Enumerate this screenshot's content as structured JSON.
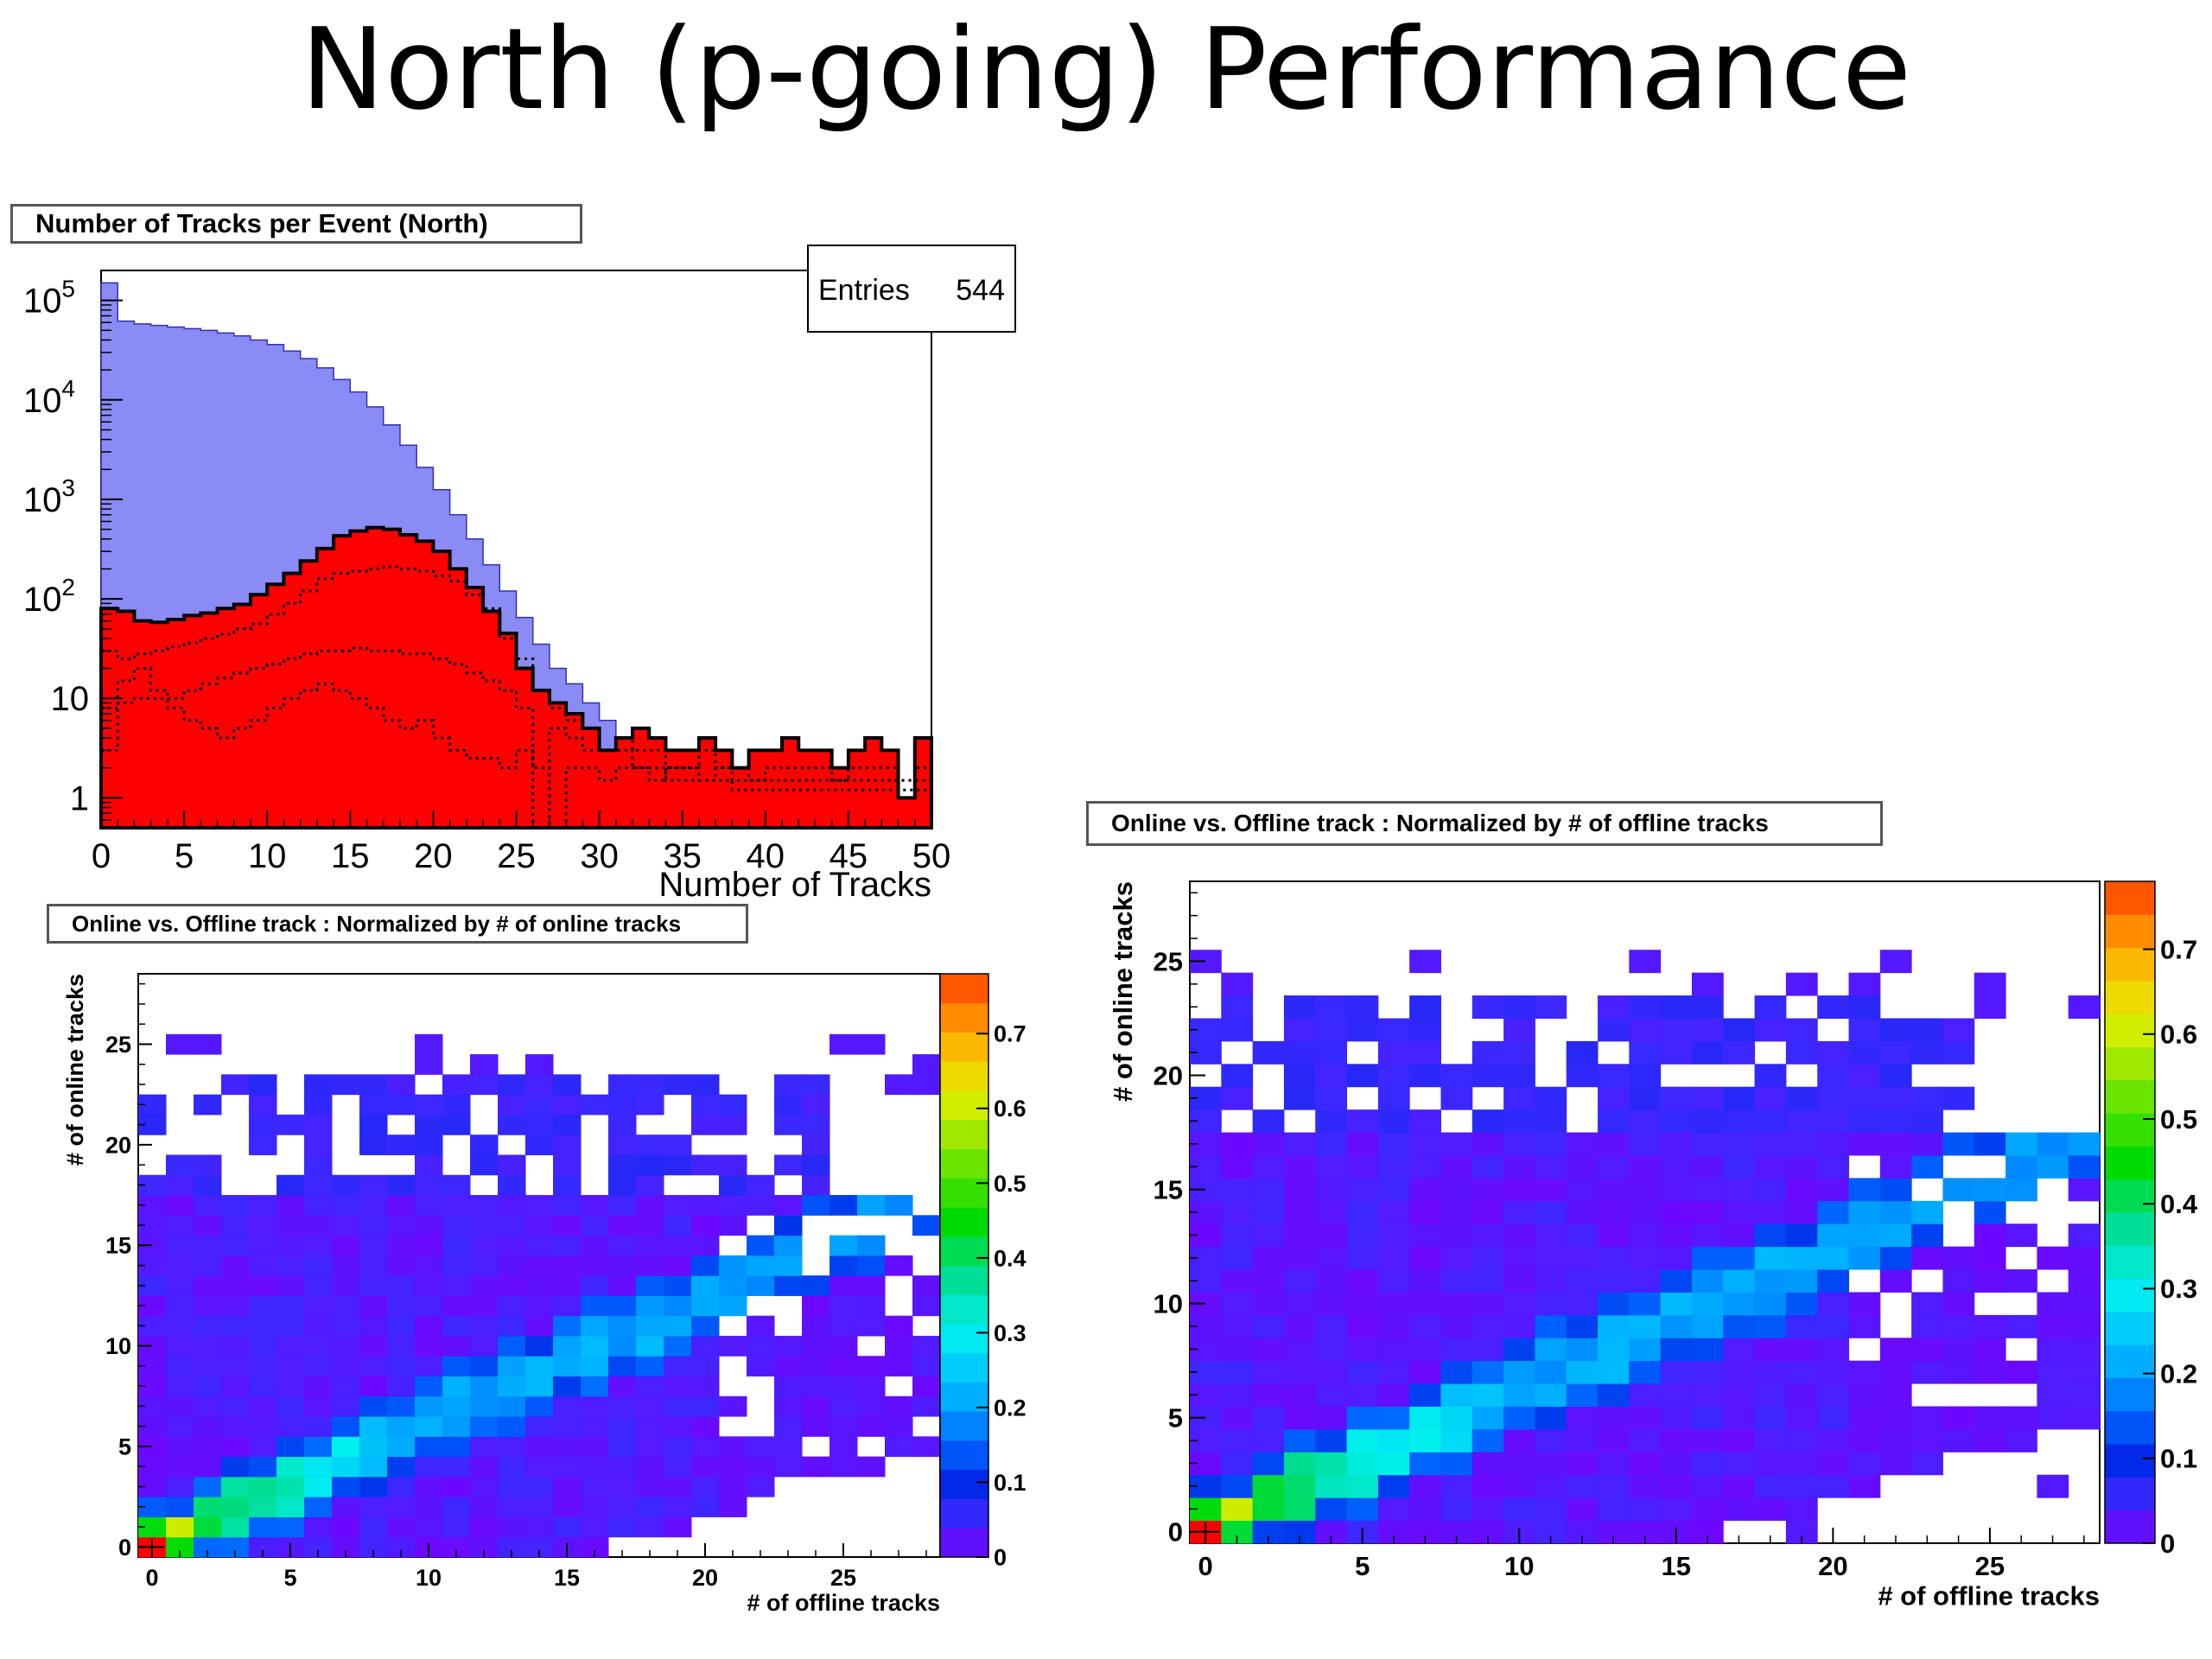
{
  "slide": {
    "title": "North (p-going) Performance"
  },
  "chart_data": [
    {
      "type": "histogram",
      "title": "Number of Tracks per Event (North)",
      "xlabel": "Number of Tracks",
      "ylabel": "",
      "xlim": [
        0,
        50
      ],
      "ylim": [
        0.5,
        200000
      ],
      "log_y": true,
      "x_ticks": [
        "0",
        "5",
        "10",
        "15",
        "20",
        "25",
        "30",
        "35",
        "40",
        "45",
        "50"
      ],
      "y_ticks": [
        {
          "value": 1,
          "base": "1",
          "exp": ""
        },
        {
          "value": 10,
          "base": "10",
          "exp": ""
        },
        {
          "value": 100,
          "base": "10",
          "exp": "2"
        },
        {
          "value": 1000,
          "base": "10",
          "exp": "3"
        },
        {
          "value": 10000,
          "base": "10",
          "exp": "4"
        },
        {
          "value": 100000,
          "base": "10",
          "exp": "5"
        }
      ],
      "stats": {
        "label": "Entries",
        "value": "544"
      },
      "series": [
        {
          "style": "blue-filled",
          "values": [
            150000,
            62000,
            58000,
            56000,
            54000,
            52000,
            50000,
            47000,
            44000,
            40000,
            36000,
            31000,
            26000,
            21000,
            16000,
            12000,
            8500,
            5600,
            3500,
            2100,
            1250,
            700,
            400,
            220,
            120,
            65,
            35,
            20,
            14,
            9,
            6,
            4,
            3.5,
            3,
            2.8,
            2.6,
            2.4,
            2.2,
            2,
            1.8,
            1.6,
            1.5,
            1.4,
            1.3,
            1.2,
            1.1,
            1,
            0.95,
            0.9,
            0.85
          ]
        },
        {
          "style": "red-filled",
          "values": [
            80,
            75,
            60,
            58,
            62,
            68,
            72,
            80,
            88,
            110,
            140,
            180,
            240,
            320,
            430,
            480,
            520,
            500,
            440,
            380,
            300,
            200,
            130,
            75,
            45,
            20,
            12,
            9,
            7,
            5,
            3,
            4,
            5,
            4,
            3,
            3,
            4,
            3,
            2,
            3,
            3,
            4,
            3,
            3,
            2,
            3,
            4,
            3,
            1,
            4
          ]
        },
        {
          "style": "dotted-upper",
          "values": [
            30,
            25,
            28,
            30,
            33,
            36,
            40,
            44,
            50,
            56,
            70,
            90,
            120,
            160,
            180,
            190,
            200,
            210,
            200,
            190,
            170,
            150,
            110,
            80,
            40,
            25,
            12,
            8,
            6,
            5,
            3,
            4,
            3,
            3,
            2,
            2,
            3,
            2,
            1.5,
            1.5,
            2,
            2,
            2,
            2,
            1.5,
            2,
            2,
            2,
            1.5,
            2
          ]
        },
        {
          "style": "dotted-lower",
          "values": [
            8,
            9,
            10,
            10,
            10,
            12,
            14,
            16,
            18,
            20,
            22,
            25,
            28,
            30,
            30,
            32,
            30,
            30,
            28,
            28,
            25,
            22,
            18,
            15,
            12,
            8,
            0.5,
            5,
            4,
            3,
            3,
            3,
            2,
            2,
            1.5,
            1.5,
            1.5,
            1.5,
            1.2,
            1.2,
            1.2,
            1.2,
            1.2,
            1.2,
            1.2,
            1.2,
            1.2,
            1.2,
            1.2,
            1.2
          ]
        },
        {
          "style": "dotted-mid",
          "values": [
            3,
            15,
            20,
            12,
            8,
            6,
            5,
            4,
            5,
            6,
            8,
            10,
            12,
            14,
            12,
            10,
            8,
            6,
            5,
            6,
            4,
            3,
            2.5,
            2.5,
            2,
            3,
            2,
            0.5,
            2,
            2,
            1.5,
            2,
            2,
            1.5,
            2,
            2,
            1.5,
            2,
            2,
            1.5,
            1.5,
            1.5,
            1.5,
            1.5,
            1.5,
            1.5,
            1.5,
            1.5,
            1.5,
            1.5
          ]
        }
      ]
    },
    {
      "type": "heatmap",
      "title": "Online vs. Offline track : Normalized by # of online tracks",
      "xlabel": "# of offline tracks",
      "ylabel": "# of online tracks",
      "xlim": [
        0,
        29
      ],
      "ylim": [
        0,
        29
      ],
      "x_ticks": [
        "0",
        "5",
        "10",
        "15",
        "20",
        "25"
      ],
      "y_ticks": [
        "0",
        "5",
        "10",
        "15",
        "20",
        "25"
      ],
      "z_range": [
        0,
        0.78
      ],
      "z_ticks": [
        "0",
        "0.1",
        "0.2",
        "0.3",
        "0.4",
        "0.5",
        "0.6",
        "0.7"
      ],
      "normalization": "online",
      "notes": "cell values estimated from colour"
    },
    {
      "type": "heatmap",
      "title": "Online vs. Offline track : Normalized by # of offline tracks",
      "xlabel": "# of offline tracks",
      "ylabel": "# of online tracks",
      "xlim": [
        0,
        29
      ],
      "ylim": [
        0,
        29
      ],
      "x_ticks": [
        "0",
        "5",
        "10",
        "15",
        "20",
        "25"
      ],
      "y_ticks": [
        "0",
        "5",
        "10",
        "15",
        "20",
        "25"
      ],
      "z_range": [
        0,
        0.78
      ],
      "z_ticks": [
        "0",
        "0.1",
        "0.2",
        "0.3",
        "0.4",
        "0.5",
        "0.6",
        "0.7"
      ],
      "normalization": "offline"
    }
  ]
}
